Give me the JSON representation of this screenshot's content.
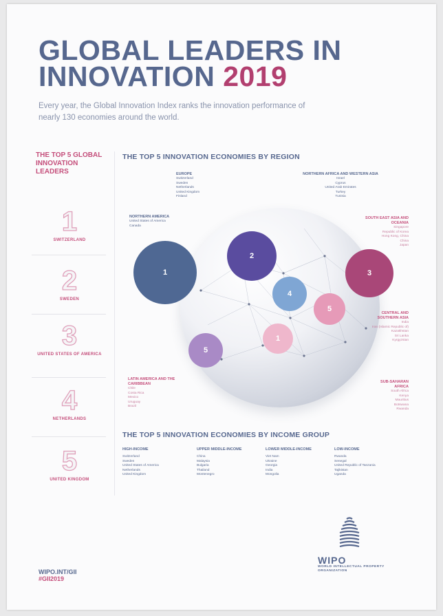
{
  "title": {
    "line1": "GLOBAL LEADERS IN",
    "line2": "INNOVATION",
    "year": "2019"
  },
  "intro": "Every year, the Global Innovation Index ranks the innovation performance of nearly 130 economies around the world.",
  "leaders": {
    "heading": "THE TOP 5 GLOBAL INNOVATION LEADERS",
    "items": [
      {
        "rank": "1",
        "country": "SWITZERLAND"
      },
      {
        "rank": "2",
        "country": "SWEDEN"
      },
      {
        "rank": "3",
        "country": "UNITED STATES OF AMERICA"
      },
      {
        "rank": "4",
        "country": "NETHERLANDS"
      },
      {
        "rank": "5",
        "country": "UNITED KINGDOM"
      }
    ]
  },
  "region": {
    "heading": "THE TOP 5 INNOVATION ECONOMIES BY REGION",
    "europe": {
      "title": "EUROPE",
      "list": [
        "Switzerland",
        "Sweden",
        "Netherlands",
        "United Kingdom",
        "Finland"
      ]
    },
    "north_africa": {
      "title": "NORTHERN AFRICA AND WESTERN ASIA",
      "list": [
        "Israel",
        "Cyprus",
        "United Arab Emirates",
        "Turkey",
        "Tunisia"
      ]
    },
    "northern_america": {
      "title": "NORTHERN AMERICA",
      "list": [
        "United States of America",
        "Canada"
      ]
    },
    "south_east_asia": {
      "title": "SOUTH EAST ASIA AND OCEANIA",
      "list": [
        "Singapore",
        "Republic of Korea",
        "Hong Kong, China",
        "China",
        "Japan"
      ]
    },
    "central_southern_asia": {
      "title": "CENTRAL AND SOUTHERN ASIA",
      "list": [
        "India",
        "Iran (Islamic Republic of)",
        "Kazakhstan",
        "Sri Lanka",
        "Kyrgyzstan"
      ]
    },
    "latin_america": {
      "title": "LATIN AMERICA AND THE CARIBBEAN",
      "list": [
        "Chile",
        "Costa Rica",
        "Mexico",
        "Uruguay",
        "Brazil"
      ]
    },
    "sub_saharan": {
      "title": "SUB-SAHARAN AFRICA",
      "list": [
        "South Africa",
        "Kenya",
        "Mauritius",
        "Botswana",
        "Rwanda"
      ]
    },
    "bubbles": [
      "1",
      "2",
      "3",
      "4",
      "5",
      "1",
      "5"
    ]
  },
  "income": {
    "heading": "THE TOP 5 INNOVATION ECONOMIES BY INCOME GROUP",
    "groups": [
      {
        "title": "HIGH-INCOME",
        "list": [
          "Switzerland",
          "Sweden",
          "United States of America",
          "Netherlands",
          "United Kingdom"
        ]
      },
      {
        "title": "UPPER MIDDLE-INCOME",
        "list": [
          "China",
          "Malaysia",
          "Bulgaria",
          "Thailand",
          "Montenegro"
        ]
      },
      {
        "title": "LOWER MIDDLE-INCOME",
        "list": [
          "Viet Nam",
          "Ukraine",
          "Georgia",
          "India",
          "Mongolia"
        ]
      },
      {
        "title": "LOW-INCOME",
        "list": [
          "Rwanda",
          "Senegal",
          "United Republic of Tanzania",
          "Tajikistan",
          "Uganda"
        ]
      }
    ]
  },
  "footer": {
    "link": "WIPO.INT/GII",
    "hashtag": "#GII2019"
  },
  "wipo": {
    "name": "WIPO",
    "full": "WORLD INTELLECTUAL PROPERTY ORGANIZATION"
  },
  "colors": {
    "navy": "#56678e",
    "magenta": "#b23f6f",
    "pink": "#c44d7a"
  }
}
